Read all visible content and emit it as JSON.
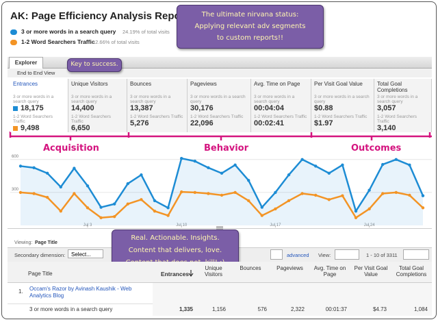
{
  "header": {
    "title": "AK: Page Efficiency Analysis Report",
    "segments": [
      {
        "name": "3 or more words in a search query",
        "share": "24.19% of total visits"
      },
      {
        "name": "1-2 Word Searchers Traffic",
        "share": "12.66% of total visits"
      }
    ]
  },
  "callouts": [
    [
      "The ultimate nirvana status:",
      "Applying relevant adv segments",
      "to custom reports!!"
    ],
    [
      "Key to success."
    ],
    [
      "Real. Actionable. Insights.",
      "Content that delivers, love.",
      "Content that does not, kill! :)"
    ]
  ],
  "tabs": {
    "explorer": "Explorer",
    "view": "End to End View"
  },
  "segment_labels": [
    "3 or more words in a search query",
    "1-2 Word Searchers Traffic"
  ],
  "metrics": [
    {
      "name": "Entrances",
      "values": [
        "18,175",
        "9,498"
      ]
    },
    {
      "name": "Unique Visitors",
      "values": [
        "14,400",
        "6,650"
      ]
    },
    {
      "name": "Bounces",
      "values": [
        "13,387",
        "5,276"
      ]
    },
    {
      "name": "Pageviews",
      "values": [
        "30,176",
        "22,096"
      ]
    },
    {
      "name": "Avg. Time on Page",
      "values": [
        "00:04:04",
        "00:02:41"
      ]
    },
    {
      "name": "Per Visit Goal Value",
      "values": [
        "$0.88",
        "$1.97"
      ]
    },
    {
      "name": "Total Goal Completions",
      "values": [
        "3,057",
        "3,140"
      ]
    }
  ],
  "annotations": [
    "Acquisition",
    "Behavior",
    "Outcomes"
  ],
  "chart_data": {
    "type": "line",
    "categories": [
      null,
      null,
      null,
      null,
      null,
      "Jul 3",
      null,
      null,
      null,
      null,
      null,
      null,
      "Jul 10",
      null,
      null,
      null,
      null,
      null,
      null,
      "Jul 17",
      null,
      null,
      null,
      null,
      null,
      null,
      "Jul 24",
      null,
      null,
      null,
      null
    ],
    "series": [
      {
        "color": "#1d8cd4",
        "values": [
          540,
          525,
          475,
          350,
          520,
          360,
          165,
          195,
          380,
          460,
          225,
          160,
          610,
          585,
          525,
          475,
          550,
          410,
          165,
          300,
          460,
          600,
          540,
          475,
          550,
          130,
          320,
          555,
          600,
          550,
          270
        ]
      },
      {
        "color": "#f39425",
        "values": [
          300,
          290,
          255,
          130,
          290,
          160,
          70,
          80,
          195,
          235,
          130,
          90,
          305,
          300,
          290,
          275,
          300,
          225,
          90,
          150,
          225,
          290,
          275,
          235,
          270,
          70,
          150,
          290,
          300,
          275,
          160
        ]
      }
    ],
    "ylim": [
      0,
      630
    ],
    "yticks": [
      300,
      600
    ],
    "grid": true
  },
  "toolbar": {
    "viewing": "Viewing:",
    "dimension": "Page Title",
    "secondary": "Secondary dimension:",
    "select": "Select...",
    "advanced": "advanced",
    "view": "View:",
    "range": "1 - 10 of 3311"
  },
  "table": {
    "headers": [
      "Page Title",
      "Entrances",
      "Unique Visitors",
      "Bounces",
      "Pageviews",
      "Avg. Time on Page",
      "Per Visit Goal Value",
      "Total Goal Completions"
    ],
    "rows": [
      {
        "index": "1.",
        "title": "Occam's Razor by Avinash Kaushik - Web Analytics Blog",
        "segment": "3 or more words in a search query",
        "cells": [
          "1,335",
          "1,156",
          "576",
          "2,322",
          "00:01:37",
          "$4.73",
          "1,084"
        ]
      }
    ]
  }
}
